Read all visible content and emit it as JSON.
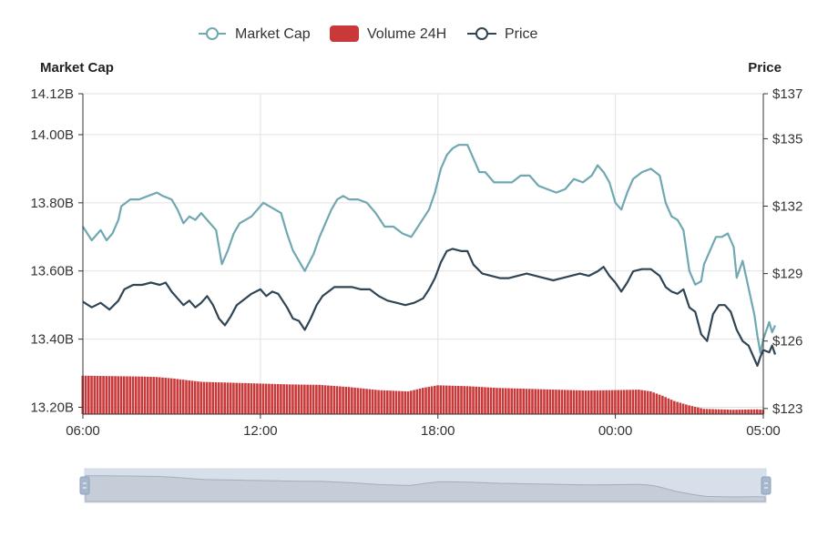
{
  "legend": {
    "items": [
      {
        "label": "Market Cap",
        "icon": "circle-line",
        "color": "#6fa8b1"
      },
      {
        "label": "Volume 24H",
        "icon": "rounded-rect",
        "color": "#c9393a"
      },
      {
        "label": "Price",
        "icon": "circle-line",
        "color": "#2f4554"
      }
    ]
  },
  "axes": {
    "left_title": "Market Cap",
    "right_title": "Price"
  },
  "chart_data": {
    "type": "line",
    "x_ticks": [
      "06:00",
      "12:00",
      "18:00",
      "00:00",
      "05:00"
    ],
    "x_range_hours": [
      0,
      23
    ],
    "x_unit": "hours since 06:00",
    "left_axis": {
      "name": "Market Cap",
      "ticks": [
        "14.12B",
        "14.00B",
        "13.80B",
        "13.60B",
        "13.40B",
        "13.20B"
      ],
      "tick_values": [
        14.12,
        14.0,
        13.8,
        13.6,
        13.4,
        13.2
      ],
      "range": [
        13.18,
        14.12
      ],
      "unit": "B"
    },
    "right_axis": {
      "name": "Price",
      "ticks": [
        "$137",
        "$135",
        "$132",
        "$129",
        "$126",
        "$123"
      ],
      "tick_values": [
        137,
        135,
        132,
        129,
        126,
        123
      ],
      "range": [
        122.75,
        137
      ]
    },
    "series": [
      {
        "name": "Market Cap",
        "axis": "left",
        "color": "#6fa8b1",
        "points": [
          [
            0,
            13.73
          ],
          [
            0.3,
            13.69
          ],
          [
            0.6,
            13.72
          ],
          [
            0.8,
            13.69
          ],
          [
            1.0,
            13.71
          ],
          [
            1.2,
            13.75
          ],
          [
            1.3,
            13.79
          ],
          [
            1.6,
            13.81
          ],
          [
            1.9,
            13.81
          ],
          [
            2.2,
            13.82
          ],
          [
            2.5,
            13.83
          ],
          [
            2.7,
            13.82
          ],
          [
            3.0,
            13.81
          ],
          [
            3.2,
            13.78
          ],
          [
            3.4,
            13.74
          ],
          [
            3.6,
            13.76
          ],
          [
            3.8,
            13.75
          ],
          [
            4.0,
            13.77
          ],
          [
            4.2,
            13.75
          ],
          [
            4.5,
            13.72
          ],
          [
            4.7,
            13.62
          ],
          [
            4.9,
            13.66
          ],
          [
            5.1,
            13.71
          ],
          [
            5.3,
            13.74
          ],
          [
            5.5,
            13.75
          ],
          [
            5.7,
            13.76
          ],
          [
            5.9,
            13.78
          ],
          [
            6.1,
            13.8
          ],
          [
            6.3,
            13.79
          ],
          [
            6.5,
            13.78
          ],
          [
            6.7,
            13.77
          ],
          [
            6.9,
            13.71
          ],
          [
            7.1,
            13.66
          ],
          [
            7.3,
            13.63
          ],
          [
            7.5,
            13.6
          ],
          [
            7.8,
            13.65
          ],
          [
            8.0,
            13.7
          ],
          [
            8.2,
            13.74
          ],
          [
            8.4,
            13.78
          ],
          [
            8.6,
            13.81
          ],
          [
            8.8,
            13.82
          ],
          [
            9.0,
            13.81
          ],
          [
            9.3,
            13.81
          ],
          [
            9.6,
            13.8
          ],
          [
            9.9,
            13.77
          ],
          [
            10.2,
            13.73
          ],
          [
            10.5,
            13.73
          ],
          [
            10.8,
            13.71
          ],
          [
            11.1,
            13.7
          ],
          [
            11.4,
            13.74
          ],
          [
            11.7,
            13.78
          ],
          [
            11.9,
            13.83
          ],
          [
            12.1,
            13.9
          ],
          [
            12.3,
            13.94
          ],
          [
            12.5,
            13.96
          ],
          [
            12.7,
            13.97
          ],
          [
            13.0,
            13.97
          ],
          [
            13.2,
            13.93
          ],
          [
            13.4,
            13.89
          ],
          [
            13.6,
            13.89
          ],
          [
            13.9,
            13.86
          ],
          [
            14.2,
            13.86
          ],
          [
            14.5,
            13.86
          ],
          [
            14.8,
            13.88
          ],
          [
            15.1,
            13.88
          ],
          [
            15.4,
            13.85
          ],
          [
            15.7,
            13.84
          ],
          [
            16.0,
            13.83
          ],
          [
            16.3,
            13.84
          ],
          [
            16.6,
            13.87
          ],
          [
            16.9,
            13.86
          ],
          [
            17.2,
            13.88
          ],
          [
            17.4,
            13.91
          ],
          [
            17.6,
            13.89
          ],
          [
            17.8,
            13.86
          ],
          [
            18.0,
            13.8
          ],
          [
            18.2,
            13.78
          ],
          [
            18.4,
            13.83
          ],
          [
            18.6,
            13.87
          ],
          [
            18.9,
            13.89
          ],
          [
            19.2,
            13.9
          ],
          [
            19.5,
            13.88
          ],
          [
            19.7,
            13.8
          ],
          [
            19.9,
            13.76
          ],
          [
            20.1,
            13.75
          ],
          [
            20.3,
            13.72
          ],
          [
            20.5,
            13.6
          ],
          [
            20.7,
            13.56
          ],
          [
            20.9,
            13.57
          ],
          [
            21.0,
            13.62
          ],
          [
            21.2,
            13.66
          ],
          [
            21.4,
            13.7
          ],
          [
            21.6,
            13.7
          ],
          [
            21.8,
            13.71
          ],
          [
            22.0,
            13.67
          ],
          [
            22.1,
            13.58
          ],
          [
            22.3,
            13.63
          ],
          [
            22.5,
            13.55
          ],
          [
            22.7,
            13.47
          ],
          [
            22.8,
            13.41
          ],
          [
            22.9,
            13.36
          ],
          [
            23.0,
            13.4
          ],
          [
            23.2,
            13.45
          ],
          [
            23.3,
            13.42
          ],
          [
            23.4,
            13.44
          ]
        ]
      },
      {
        "name": "Price",
        "axis": "right",
        "color": "#2f4554",
        "points": [
          [
            0,
            127.75
          ],
          [
            0.3,
            127.5
          ],
          [
            0.6,
            127.7
          ],
          [
            0.9,
            127.4
          ],
          [
            1.2,
            127.8
          ],
          [
            1.4,
            128.3
          ],
          [
            1.7,
            128.5
          ],
          [
            2.0,
            128.5
          ],
          [
            2.3,
            128.6
          ],
          [
            2.6,
            128.5
          ],
          [
            2.8,
            128.6
          ],
          [
            3.0,
            128.2
          ],
          [
            3.2,
            127.9
          ],
          [
            3.4,
            127.6
          ],
          [
            3.6,
            127.8
          ],
          [
            3.8,
            127.5
          ],
          [
            4.0,
            127.7
          ],
          [
            4.2,
            128.0
          ],
          [
            4.4,
            127.6
          ],
          [
            4.6,
            127.0
          ],
          [
            4.8,
            126.7
          ],
          [
            5.0,
            127.1
          ],
          [
            5.2,
            127.6
          ],
          [
            5.4,
            127.8
          ],
          [
            5.7,
            128.1
          ],
          [
            6.0,
            128.3
          ],
          [
            6.2,
            128.0
          ],
          [
            6.4,
            128.2
          ],
          [
            6.6,
            128.1
          ],
          [
            6.9,
            127.5
          ],
          [
            7.1,
            127.0
          ],
          [
            7.3,
            126.9
          ],
          [
            7.5,
            126.5
          ],
          [
            7.7,
            127.0
          ],
          [
            7.9,
            127.6
          ],
          [
            8.1,
            128.0
          ],
          [
            8.3,
            128.2
          ],
          [
            8.5,
            128.4
          ],
          [
            8.8,
            128.4
          ],
          [
            9.1,
            128.4
          ],
          [
            9.4,
            128.3
          ],
          [
            9.7,
            128.3
          ],
          [
            10.0,
            128.0
          ],
          [
            10.3,
            127.8
          ],
          [
            10.6,
            127.7
          ],
          [
            10.9,
            127.6
          ],
          [
            11.2,
            127.7
          ],
          [
            11.5,
            127.9
          ],
          [
            11.7,
            128.3
          ],
          [
            11.9,
            128.8
          ],
          [
            12.1,
            129.5
          ],
          [
            12.3,
            130.0
          ],
          [
            12.5,
            130.1
          ],
          [
            12.8,
            130.0
          ],
          [
            13.0,
            130.0
          ],
          [
            13.2,
            129.4
          ],
          [
            13.5,
            129.0
          ],
          [
            13.8,
            128.9
          ],
          [
            14.1,
            128.8
          ],
          [
            14.4,
            128.8
          ],
          [
            14.7,
            128.9
          ],
          [
            15.0,
            129.0
          ],
          [
            15.3,
            128.9
          ],
          [
            15.6,
            128.8
          ],
          [
            15.9,
            128.7
          ],
          [
            16.2,
            128.8
          ],
          [
            16.5,
            128.9
          ],
          [
            16.8,
            129.0
          ],
          [
            17.1,
            128.9
          ],
          [
            17.4,
            129.1
          ],
          [
            17.6,
            129.3
          ],
          [
            17.8,
            128.9
          ],
          [
            18.0,
            128.6
          ],
          [
            18.2,
            128.2
          ],
          [
            18.4,
            128.6
          ],
          [
            18.6,
            129.1
          ],
          [
            18.9,
            129.2
          ],
          [
            19.2,
            129.2
          ],
          [
            19.5,
            128.9
          ],
          [
            19.7,
            128.4
          ],
          [
            19.9,
            128.2
          ],
          [
            20.1,
            128.1
          ],
          [
            20.3,
            128.3
          ],
          [
            20.5,
            127.5
          ],
          [
            20.7,
            127.3
          ],
          [
            20.9,
            126.3
          ],
          [
            21.1,
            126.0
          ],
          [
            21.3,
            127.2
          ],
          [
            21.5,
            127.6
          ],
          [
            21.7,
            127.6
          ],
          [
            21.9,
            127.3
          ],
          [
            22.1,
            126.5
          ],
          [
            22.3,
            126.0
          ],
          [
            22.5,
            125.8
          ],
          [
            22.7,
            125.2
          ],
          [
            22.8,
            124.9
          ],
          [
            22.9,
            125.3
          ],
          [
            23.0,
            125.6
          ],
          [
            23.2,
            125.5
          ],
          [
            23.3,
            125.8
          ],
          [
            23.4,
            125.4
          ]
        ]
      },
      {
        "name": "Volume 24H",
        "axis": "bars",
        "color": "#c9393a",
        "note_scale": "relative",
        "points": [
          [
            0,
            0.88
          ],
          [
            1,
            0.87
          ],
          [
            2,
            0.86
          ],
          [
            2.5,
            0.85
          ],
          [
            3,
            0.82
          ],
          [
            3.5,
            0.78
          ],
          [
            4,
            0.74
          ],
          [
            5,
            0.72
          ],
          [
            6,
            0.7
          ],
          [
            7,
            0.68
          ],
          [
            8,
            0.67
          ],
          [
            9,
            0.62
          ],
          [
            10,
            0.55
          ],
          [
            11,
            0.52
          ],
          [
            11.5,
            0.6
          ],
          [
            12,
            0.66
          ],
          [
            13,
            0.64
          ],
          [
            14,
            0.6
          ],
          [
            15,
            0.58
          ],
          [
            16,
            0.56
          ],
          [
            17,
            0.54
          ],
          [
            18,
            0.55
          ],
          [
            18.8,
            0.56
          ],
          [
            19.2,
            0.52
          ],
          [
            19.6,
            0.42
          ],
          [
            20,
            0.3
          ],
          [
            20.5,
            0.2
          ],
          [
            21,
            0.12
          ],
          [
            22,
            0.1
          ],
          [
            22.8,
            0.11
          ],
          [
            23.4,
            0.08
          ]
        ]
      }
    ]
  },
  "slider": {
    "label": "time-range-slider",
    "range_fraction": [
      0,
      1
    ]
  }
}
